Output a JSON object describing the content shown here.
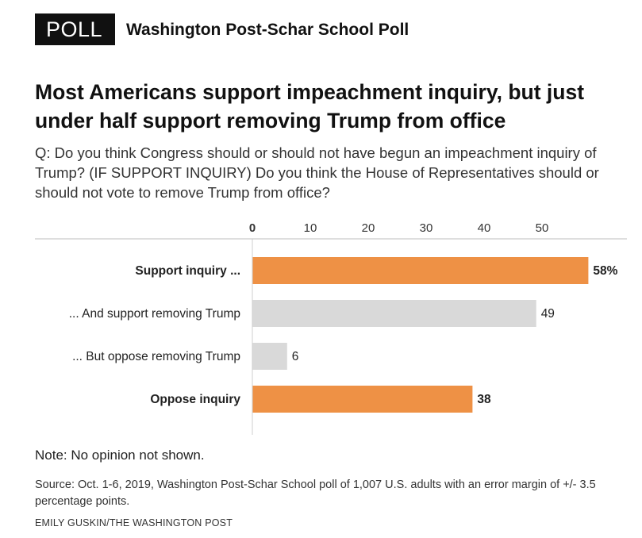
{
  "header": {
    "badge": "POLL",
    "poll_name": "Washington Post-Schar School Poll"
  },
  "headline": "Most Americans support impeachment inquiry, but just under half support removing Trump from office",
  "question": "Q: Do you think Congress should or should not have begun an impeachment inquiry of Trump? (IF SUPPORT INQUIRY) Do you think the House of Representatives should or should not vote to remove Trump from office?",
  "chart_data": {
    "type": "bar",
    "orientation": "horizontal",
    "title": "Most Americans support impeachment inquiry, but just under half support removing Trump from office",
    "xlabel": "",
    "ylabel": "",
    "xlim": [
      0,
      60
    ],
    "ticks": [
      0,
      10,
      20,
      30,
      40,
      50
    ],
    "categories": [
      "Support inquiry ...",
      "... And support removing Trump",
      "... But oppose removing Trump",
      "Oppose inquiry"
    ],
    "values": [
      58,
      49,
      6,
      38
    ],
    "value_labels": [
      "58%",
      "49",
      "6",
      "38"
    ],
    "bold": [
      true,
      false,
      false,
      true
    ],
    "bar_colors": [
      "#ee9145",
      "#d9d9d9",
      "#d9d9d9",
      "#ee9145"
    ]
  },
  "footer": {
    "note": "Note: No opinion not shown.",
    "source": "Source: Oct. 1-6, 2019, Washington Post-Schar School poll of 1,007 U.S. adults with an error margin of +/- 3.5 percentage points.",
    "credit": "EMILY GUSKIN/THE WASHINGTON POST"
  }
}
